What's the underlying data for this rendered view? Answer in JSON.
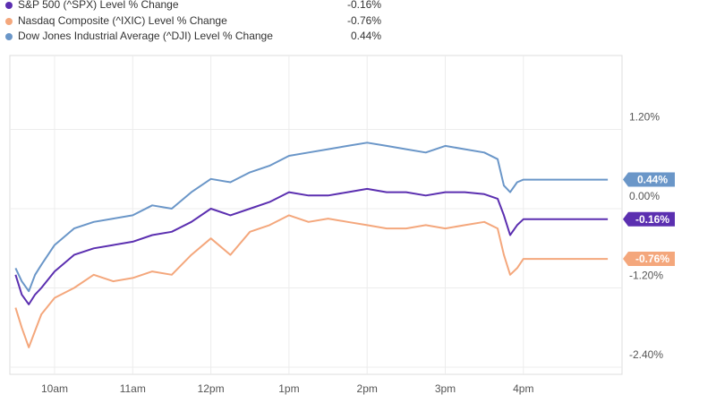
{
  "chart_data": {
    "type": "line",
    "title": "",
    "xlabel": "",
    "ylabel": "",
    "x_ticks": [
      "10am",
      "11am",
      "12pm",
      "1pm",
      "2pm",
      "3pm",
      "4pm"
    ],
    "y_ticks": [
      "1.20%",
      "0.00%",
      "-1.20%",
      "-2.40%"
    ],
    "ylim": [
      -2.4,
      2.0
    ],
    "grid": true,
    "legend_position": "top-left",
    "series": [
      {
        "name": "S&P 500 (^SPX) Level % Change",
        "value_label": "-0.16%",
        "badge": "-0.16%",
        "color": "#5b2fb0",
        "points": [
          [
            9.5,
            -1.0
          ],
          [
            9.58,
            -1.3
          ],
          [
            9.67,
            -1.45
          ],
          [
            9.75,
            -1.3
          ],
          [
            9.83,
            -1.2
          ],
          [
            10.0,
            -0.95
          ],
          [
            10.25,
            -0.7
          ],
          [
            10.5,
            -0.6
          ],
          [
            10.75,
            -0.55
          ],
          [
            11.0,
            -0.5
          ],
          [
            11.25,
            -0.4
          ],
          [
            11.5,
            -0.35
          ],
          [
            11.75,
            -0.2
          ],
          [
            12.0,
            0.0
          ],
          [
            12.25,
            -0.1
          ],
          [
            12.5,
            0.0
          ],
          [
            12.75,
            0.1
          ],
          [
            13.0,
            0.25
          ],
          [
            13.25,
            0.2
          ],
          [
            13.5,
            0.2
          ],
          [
            13.75,
            0.25
          ],
          [
            14.0,
            0.3
          ],
          [
            14.25,
            0.25
          ],
          [
            14.5,
            0.25
          ],
          [
            14.75,
            0.2
          ],
          [
            15.0,
            0.25
          ],
          [
            15.25,
            0.25
          ],
          [
            15.5,
            0.22
          ],
          [
            15.67,
            0.15
          ],
          [
            15.75,
            -0.1
          ],
          [
            15.83,
            -0.4
          ],
          [
            15.92,
            -0.25
          ],
          [
            16.0,
            -0.16
          ],
          [
            17.08,
            -0.16
          ]
        ]
      },
      {
        "name": "Nasdaq Composite (^IXIC) Level % Change",
        "value_label": "-0.76%",
        "badge": "-0.76%",
        "color": "#f4a77c",
        "points": [
          [
            9.5,
            -1.5
          ],
          [
            9.58,
            -1.8
          ],
          [
            9.67,
            -2.1
          ],
          [
            9.75,
            -1.85
          ],
          [
            9.83,
            -1.6
          ],
          [
            10.0,
            -1.35
          ],
          [
            10.25,
            -1.2
          ],
          [
            10.5,
            -1.0
          ],
          [
            10.75,
            -1.1
          ],
          [
            11.0,
            -1.05
          ],
          [
            11.25,
            -0.95
          ],
          [
            11.5,
            -1.0
          ],
          [
            11.75,
            -0.7
          ],
          [
            12.0,
            -0.45
          ],
          [
            12.25,
            -0.7
          ],
          [
            12.5,
            -0.35
          ],
          [
            12.75,
            -0.25
          ],
          [
            13.0,
            -0.1
          ],
          [
            13.25,
            -0.2
          ],
          [
            13.5,
            -0.15
          ],
          [
            13.75,
            -0.2
          ],
          [
            14.0,
            -0.25
          ],
          [
            14.25,
            -0.3
          ],
          [
            14.5,
            -0.3
          ],
          [
            14.75,
            -0.25
          ],
          [
            15.0,
            -0.3
          ],
          [
            15.25,
            -0.25
          ],
          [
            15.5,
            -0.2
          ],
          [
            15.67,
            -0.3
          ],
          [
            15.75,
            -0.7
          ],
          [
            15.83,
            -1.0
          ],
          [
            15.92,
            -0.9
          ],
          [
            16.0,
            -0.76
          ],
          [
            17.08,
            -0.76
          ]
        ]
      },
      {
        "name": "Dow Jones Industrial Average (^DJI) Level % Change",
        "value_label": "0.44%",
        "badge": "0.44%",
        "color": "#6a96c8",
        "points": [
          [
            9.5,
            -0.9
          ],
          [
            9.58,
            -1.1
          ],
          [
            9.67,
            -1.25
          ],
          [
            9.75,
            -1.0
          ],
          [
            9.83,
            -0.85
          ],
          [
            10.0,
            -0.55
          ],
          [
            10.25,
            -0.3
          ],
          [
            10.5,
            -0.2
          ],
          [
            10.75,
            -0.15
          ],
          [
            11.0,
            -0.1
          ],
          [
            11.25,
            0.05
          ],
          [
            11.5,
            0.0
          ],
          [
            11.75,
            0.25
          ],
          [
            12.0,
            0.45
          ],
          [
            12.25,
            0.4
          ],
          [
            12.5,
            0.55
          ],
          [
            12.75,
            0.65
          ],
          [
            13.0,
            0.8
          ],
          [
            13.25,
            0.85
          ],
          [
            13.5,
            0.9
          ],
          [
            13.75,
            0.95
          ],
          [
            14.0,
            1.0
          ],
          [
            14.25,
            0.95
          ],
          [
            14.5,
            0.9
          ],
          [
            14.75,
            0.85
          ],
          [
            15.0,
            0.95
          ],
          [
            15.25,
            0.9
          ],
          [
            15.5,
            0.85
          ],
          [
            15.67,
            0.75
          ],
          [
            15.75,
            0.35
          ],
          [
            15.83,
            0.25
          ],
          [
            15.92,
            0.4
          ],
          [
            16.0,
            0.44
          ],
          [
            17.08,
            0.44
          ]
        ]
      }
    ]
  }
}
